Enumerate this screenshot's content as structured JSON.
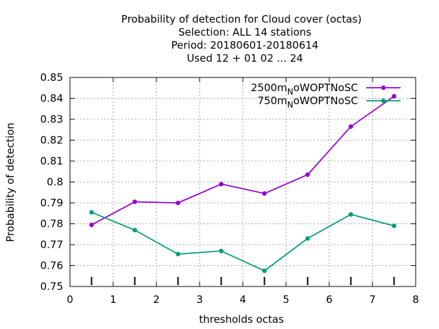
{
  "chart_data": {
    "type": "line",
    "title_lines": [
      "Probability of detection  for Cloud cover (octas)",
      "Selection: ALL     14 stations",
      "Period: 20180601-20180614",
      "Used  12 + 01 02 ... 24"
    ],
    "xlabel": "thresholds octas",
    "ylabel": "Probability of detection",
    "xlim": [
      0,
      8
    ],
    "ylim": [
      0.75,
      0.85
    ],
    "xticks": [
      "0",
      "1",
      "2",
      "3",
      "4",
      "5",
      "6",
      "7",
      "8"
    ],
    "yticks": [
      "0.75",
      "0.76",
      "0.77",
      "0.78",
      "0.79",
      "0.8",
      "0.81",
      "0.82",
      "0.83",
      "0.84",
      "0.85"
    ],
    "grid": true,
    "legend_position": "top-right",
    "x": [
      0.5,
      1.5,
      2.5,
      3.5,
      4.5,
      5.5,
      6.5,
      7.5
    ],
    "series": [
      {
        "name_main": "2500m",
        "name_sub": "N",
        "name_tail": "oWOPTNoSC",
        "color": "#9400d3",
        "values": [
          0.7795,
          0.7905,
          0.79,
          0.799,
          0.7945,
          0.8035,
          0.8265,
          0.841
        ]
      },
      {
        "name_main": "750m",
        "name_sub": "N",
        "name_tail": "oWOPTNoSC",
        "color": "#009e73",
        "values": [
          0.7855,
          0.777,
          0.7655,
          0.767,
          0.7575,
          0.773,
          0.7845,
          0.779
        ]
      }
    ],
    "threshold_markers_x": [
      0.5,
      1.5,
      2.5,
      3.5,
      4.5,
      5.5,
      6.5,
      7.5
    ]
  }
}
